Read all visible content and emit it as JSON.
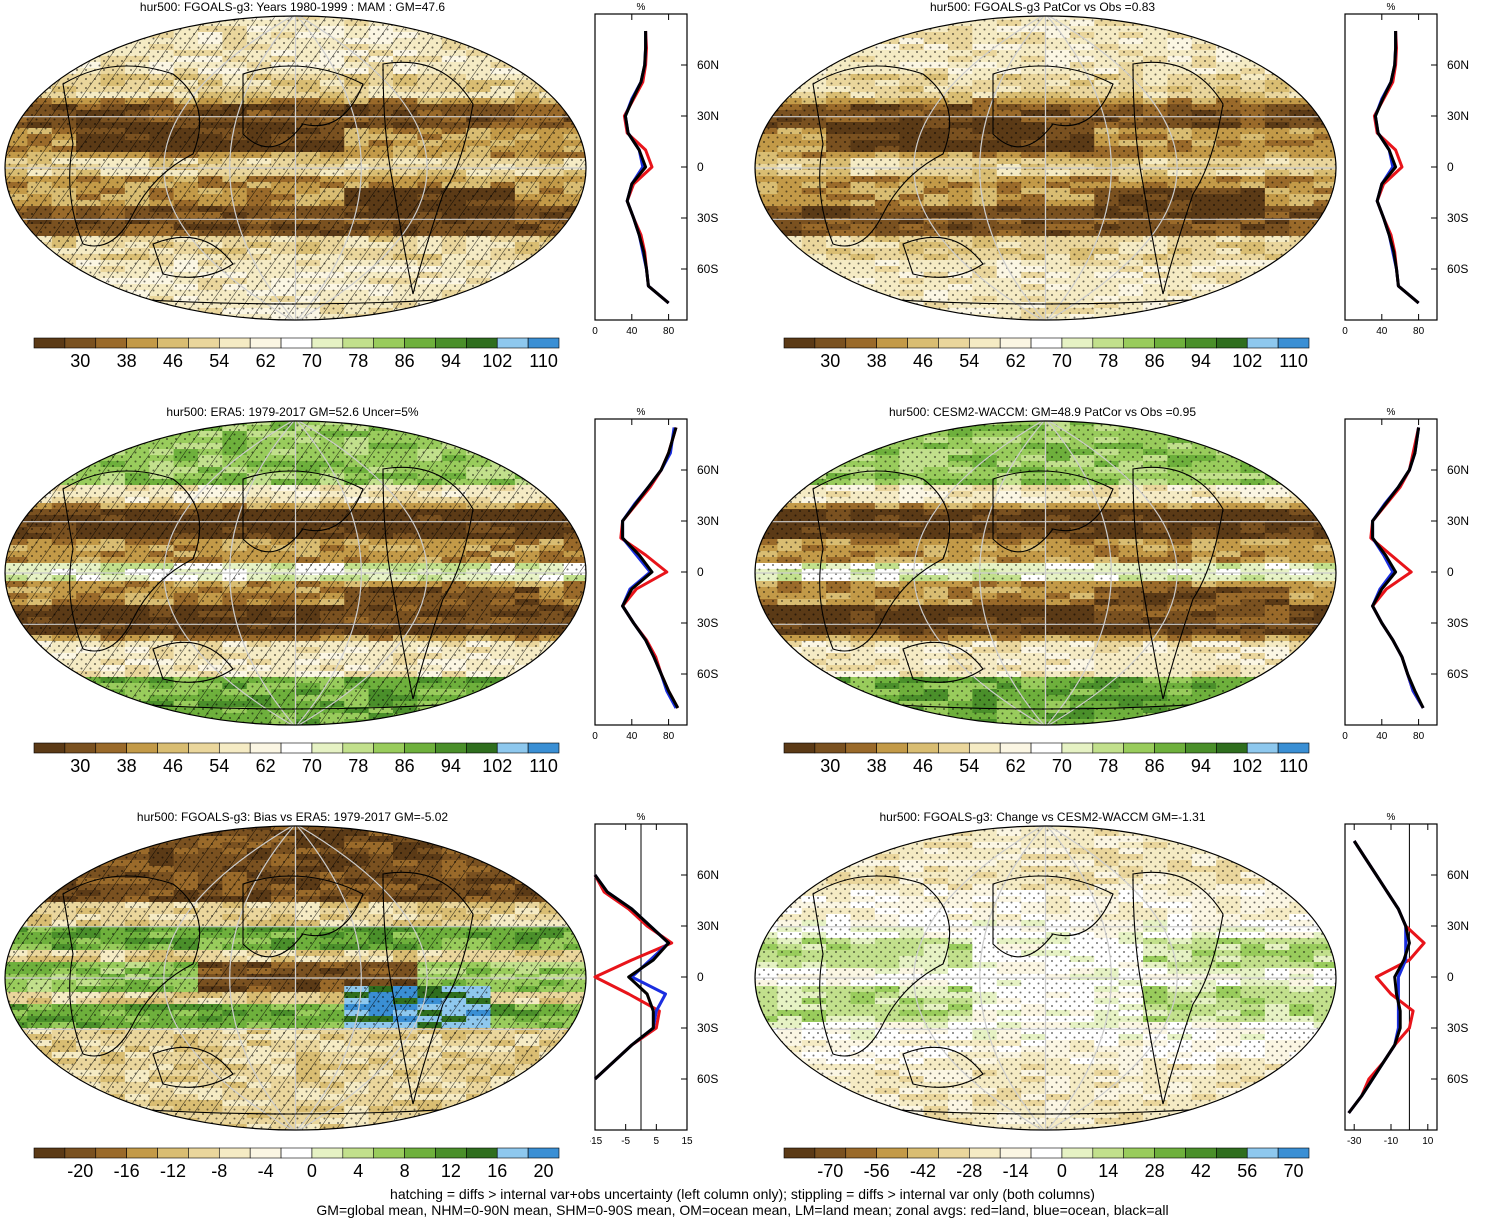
{
  "panels": [
    {
      "id": "p1",
      "title": "hur500: FGOALS-g3: Years 1980-1999 : MAM : GM=47.6",
      "colorbar": {
        "labels": [
          "30",
          "38",
          "46",
          "54",
          "62",
          "70",
          "78",
          "86",
          "94",
          "102",
          "110"
        ]
      },
      "zonal": {
        "top": "%",
        "xticks": [
          "0",
          "40",
          "80"
        ],
        "yticks": [
          "60N",
          "30N",
          "0",
          "30S",
          "60S"
        ]
      },
      "map_kind": "abs_model",
      "hatch": true,
      "stipple": true
    },
    {
      "id": "p2",
      "title": "hur500: FGOALS-g3 PatCor vs Obs =0.83",
      "colorbar": {
        "labels": [
          "30",
          "38",
          "46",
          "54",
          "62",
          "70",
          "78",
          "86",
          "94",
          "102",
          "110"
        ]
      },
      "zonal": {
        "top": "%",
        "xticks": [
          "0",
          "40",
          "80"
        ],
        "yticks": [
          "60N",
          "30N",
          "0",
          "30S",
          "60S"
        ]
      },
      "map_kind": "abs_model",
      "hatch": false,
      "stipple": true
    },
    {
      "id": "p3",
      "title": "hur500: ERA5: 1979-2017 GM=52.6 Uncer=5%",
      "colorbar": {
        "labels": [
          "30",
          "38",
          "46",
          "54",
          "62",
          "70",
          "78",
          "86",
          "94",
          "102",
          "110"
        ]
      },
      "zonal": {
        "top": "%",
        "xticks": [
          "0",
          "40",
          "80"
        ],
        "yticks": [
          "60N",
          "30N",
          "0",
          "30S",
          "60S"
        ]
      },
      "map_kind": "abs_obs",
      "hatch": true,
      "stipple": true
    },
    {
      "id": "p4",
      "title": "hur500: CESM2-WACCM: GM=48.9 PatCor vs Obs =0.95",
      "colorbar": {
        "labels": [
          "30",
          "38",
          "46",
          "54",
          "62",
          "70",
          "78",
          "86",
          "94",
          "102",
          "110"
        ]
      },
      "zonal": {
        "top": "%",
        "xticks": [
          "0",
          "40",
          "80"
        ],
        "yticks": [
          "60N",
          "30N",
          "0",
          "30S",
          "60S"
        ]
      },
      "map_kind": "abs_obs",
      "hatch": false,
      "stipple": true
    },
    {
      "id": "p5",
      "title": "hur500: FGOALS-g3: Bias vs ERA5: 1979-2017 GM=-5.02",
      "colorbar": {
        "labels": [
          "-20",
          "-16",
          "-12",
          "-8",
          "-4",
          "0",
          "4",
          "8",
          "12",
          "16",
          "20"
        ]
      },
      "zonal": {
        "top": "%",
        "xticks": [
          "-15",
          "-5",
          "5",
          "15"
        ],
        "yticks": [
          "60N",
          "30N",
          "0",
          "30S",
          "60S"
        ]
      },
      "map_kind": "bias",
      "hatch": true,
      "stipple": true
    },
    {
      "id": "p6",
      "title": "hur500: FGOALS-g3: Change vs CESM2-WACCM GM=-1.31",
      "colorbar": {
        "labels": [
          "-70",
          "-56",
          "-42",
          "-28",
          "-14",
          "0",
          "14",
          "28",
          "42",
          "56",
          "70"
        ]
      },
      "zonal": {
        "top": "%",
        "xticks": [
          "-30",
          "-10",
          "10"
        ],
        "yticks": [
          "60N",
          "30N",
          "0",
          "30S",
          "60S"
        ]
      },
      "map_kind": "change",
      "hatch": false,
      "stipple": true
    }
  ],
  "palette": [
    "#5b3a16",
    "#7a5120",
    "#9a6a2a",
    "#c39a48",
    "#d9bd72",
    "#ead69c",
    "#f5ebc4",
    "#fbf6e3",
    "#ffffff",
    "#e6f2c4",
    "#c2e08c",
    "#99cc5c",
    "#6eb03c",
    "#4a8f2a",
    "#2f6e1e",
    "#8ec8ee",
    "#3a8fd4"
  ],
  "footer": {
    "line1": "hatching = diffs > internal var+obs uncertainty (left column only); stippling = diffs > internal var only (both columns)",
    "line2": "GM=global mean, NHM=0-90N mean, SHM=0-90S mean, OM=ocean mean, LM=land mean; zonal avgs: red=land, blue=ocean, black=all"
  },
  "chart_data": [
    {
      "type": "line",
      "title": "hur500: FGOALS-g3: Years 1980-1999 : MAM : GM=47.6",
      "xlabel": "%",
      "xlim": [
        0,
        100
      ],
      "y": [
        80,
        70,
        60,
        50,
        40,
        30,
        20,
        10,
        0,
        -10,
        -20,
        -30,
        -40,
        -50,
        -60,
        -70,
        -80
      ],
      "series": [
        {
          "name": "land",
          "color": "red",
          "values": [
            55,
            56,
            55,
            52,
            42,
            32,
            35,
            55,
            62,
            42,
            35,
            42,
            50,
            54,
            56,
            58,
            80
          ]
        },
        {
          "name": "ocean",
          "color": "blue",
          "values": [
            55,
            55,
            54,
            50,
            40,
            33,
            36,
            48,
            52,
            40,
            35,
            42,
            48,
            52,
            56,
            58,
            80
          ]
        },
        {
          "name": "all",
          "color": "black",
          "values": [
            55,
            55,
            54,
            50,
            41,
            33,
            36,
            48,
            55,
            40,
            35,
            42,
            48,
            53,
            56,
            58,
            80
          ]
        }
      ]
    },
    {
      "type": "line",
      "title": "hur500: FGOALS-g3 PatCor vs Obs =0.83",
      "xlabel": "%",
      "xlim": [
        0,
        100
      ],
      "y": [
        80,
        70,
        60,
        50,
        40,
        30,
        20,
        10,
        0,
        -10,
        -20,
        -30,
        -40,
        -50,
        -60,
        -70,
        -80
      ],
      "series": [
        {
          "name": "land",
          "color": "red",
          "values": [
            55,
            56,
            55,
            52,
            42,
            32,
            35,
            55,
            62,
            42,
            35,
            42,
            50,
            54,
            56,
            58,
            80
          ]
        },
        {
          "name": "ocean",
          "color": "blue",
          "values": [
            55,
            55,
            54,
            50,
            40,
            33,
            36,
            48,
            52,
            40,
            35,
            42,
            48,
            52,
            56,
            58,
            80
          ]
        },
        {
          "name": "all",
          "color": "black",
          "values": [
            55,
            55,
            54,
            50,
            41,
            33,
            36,
            48,
            55,
            40,
            35,
            42,
            48,
            53,
            56,
            58,
            80
          ]
        }
      ]
    },
    {
      "type": "line",
      "title": "hur500: ERA5: 1979-2017 GM=52.6 Uncer=5%",
      "xlabel": "%",
      "xlim": [
        0,
        100
      ],
      "y": [
        85,
        70,
        60,
        50,
        40,
        30,
        20,
        10,
        0,
        -10,
        -20,
        -30,
        -40,
        -50,
        -60,
        -70,
        -80
      ],
      "series": [
        {
          "name": "land",
          "color": "red",
          "values": [
            88,
            80,
            72,
            60,
            45,
            30,
            28,
            55,
            78,
            45,
            30,
            42,
            56,
            66,
            72,
            80,
            90
          ]
        },
        {
          "name": "ocean",
          "color": "blue",
          "values": [
            86,
            82,
            72,
            58,
            43,
            30,
            30,
            45,
            60,
            38,
            30,
            42,
            55,
            64,
            72,
            78,
            88
          ]
        },
        {
          "name": "all",
          "color": "black",
          "values": [
            88,
            80,
            72,
            58,
            44,
            30,
            30,
            48,
            62,
            40,
            30,
            42,
            55,
            64,
            72,
            80,
            90
          ]
        }
      ]
    },
    {
      "type": "line",
      "title": "hur500: CESM2-WACCM: GM=48.9 PatCor vs Obs =0.95",
      "xlabel": "%",
      "xlim": [
        0,
        100
      ],
      "y": [
        85,
        70,
        60,
        50,
        40,
        30,
        20,
        10,
        0,
        -10,
        -20,
        -30,
        -40,
        -50,
        -60,
        -70,
        -80
      ],
      "series": [
        {
          "name": "land",
          "color": "red",
          "values": [
            80,
            74,
            70,
            60,
            45,
            30,
            28,
            50,
            72,
            45,
            30,
            40,
            52,
            62,
            68,
            74,
            85
          ]
        },
        {
          "name": "ocean",
          "color": "blue",
          "values": [
            80,
            76,
            70,
            58,
            43,
            30,
            30,
            42,
            52,
            38,
            30,
            40,
            52,
            62,
            68,
            74,
            85
          ]
        },
        {
          "name": "all",
          "color": "black",
          "values": [
            80,
            76,
            70,
            58,
            44,
            30,
            30,
            44,
            55,
            40,
            30,
            40,
            52,
            62,
            68,
            76,
            85
          ]
        }
      ]
    },
    {
      "type": "line",
      "title": "hur500: FGOALS-g3: Bias vs ERA5: 1979-2017 GM=-5.02",
      "xlabel": "%",
      "xlim": [
        -15,
        15
      ],
      "y": [
        60,
        50,
        40,
        30,
        20,
        10,
        0,
        -10,
        -20,
        -30,
        -40,
        -50,
        -60
      ],
      "series": [
        {
          "name": "land",
          "color": "red",
          "values": [
            -15,
            -12,
            -4,
            2,
            10,
            -3,
            -15,
            -4,
            6,
            5,
            -3,
            -9,
            -15
          ]
        },
        {
          "name": "ocean",
          "color": "blue",
          "values": [
            -15,
            -11,
            -3,
            3,
            9,
            3,
            -3,
            8,
            5,
            4,
            -3,
            -9,
            -15
          ]
        },
        {
          "name": "all",
          "color": "black",
          "values": [
            -15,
            -11,
            -3,
            3,
            9,
            4,
            -4,
            2,
            4,
            4,
            -3,
            -9,
            -15
          ]
        }
      ]
    },
    {
      "type": "line",
      "title": "hur500: FGOALS-g3: Change vs CESM2-WACCM GM=-1.31",
      "xlabel": "%",
      "xlim": [
        -35,
        15
      ],
      "y": [
        80,
        70,
        60,
        50,
        40,
        30,
        20,
        10,
        0,
        -10,
        -20,
        -30,
        -40,
        -50,
        -60,
        -70,
        -80
      ],
      "series": [
        {
          "name": "land",
          "color": "red",
          "values": [
            -30,
            -24,
            -18,
            -12,
            -6,
            -2,
            8,
            0,
            -18,
            -10,
            2,
            0,
            -8,
            -14,
            -22,
            -26,
            -33
          ]
        },
        {
          "name": "ocean",
          "color": "blue",
          "values": [
            -30,
            -24,
            -18,
            -12,
            -6,
            -2,
            -2,
            -2,
            -6,
            -6,
            -6,
            -6,
            -8,
            -14,
            -20,
            -26,
            -33
          ]
        },
        {
          "name": "all",
          "color": "black",
          "values": [
            -30,
            -24,
            -18,
            -12,
            -6,
            -2,
            0,
            -3,
            -8,
            -7,
            -5,
            -5,
            -8,
            -14,
            -20,
            -26,
            -33
          ]
        }
      ]
    }
  ]
}
